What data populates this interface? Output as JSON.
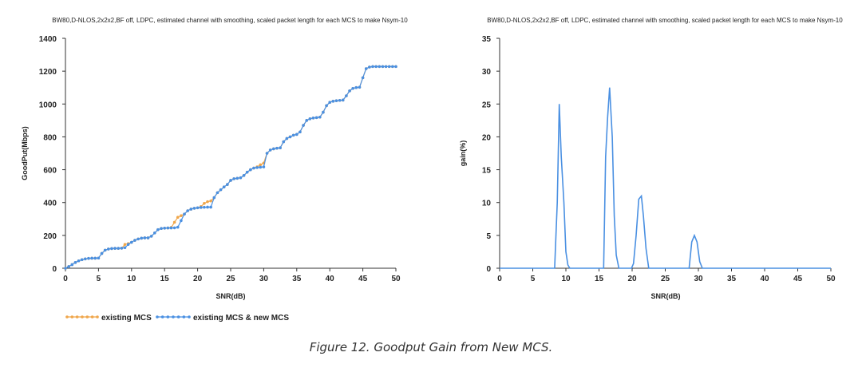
{
  "caption": "Figure 12. Goodput Gain from New MCS.",
  "chart_data": [
    {
      "type": "line",
      "title": "BW80,D-NLOS,2x2x2,BF off, LDPC, estimated channel with smoothing, scaled packet length for each MCS to make Nsym-10",
      "xlabel": "SNR(dB)",
      "ylabel": "GoodPut(Mbps)",
      "xlim": [
        0,
        50
      ],
      "ylim": [
        0,
        1400
      ],
      "xticks": [
        0,
        5,
        10,
        15,
        20,
        25,
        30,
        35,
        40,
        45,
        50
      ],
      "yticks": [
        0,
        200,
        400,
        600,
        800,
        1000,
        1200,
        1400
      ],
      "grid": false,
      "legend_position": "bottom-left",
      "x": [
        0,
        0.5,
        1,
        1.5,
        2,
        2.5,
        3,
        3.5,
        4,
        4.5,
        5,
        5.5,
        6,
        6.5,
        7,
        7.5,
        8,
        8.5,
        9,
        9.5,
        10,
        10.5,
        11,
        11.5,
        12,
        12.5,
        13,
        13.5,
        14,
        14.5,
        15,
        15.5,
        16,
        16.5,
        17,
        17.5,
        18,
        18.5,
        19,
        19.5,
        20,
        20.5,
        21,
        21.5,
        22,
        22.5,
        23,
        23.5,
        24,
        24.5,
        25,
        25.5,
        26,
        26.5,
        27,
        27.5,
        28,
        28.5,
        29,
        29.5,
        30,
        30.5,
        31,
        31.5,
        32,
        32.5,
        33,
        33.5,
        34,
        34.5,
        35,
        35.5,
        36,
        36.5,
        37,
        37.5,
        38,
        38.5,
        39,
        39.5,
        40,
        40.5,
        41,
        41.5,
        42,
        42.5,
        43,
        43.5,
        44,
        44.5,
        45,
        45.5,
        46,
        46.5,
        47,
        47.5,
        48,
        48.5,
        49,
        49.5,
        50
      ],
      "series": [
        {
          "name": "existing MCS",
          "color": "#f0a64a",
          "values": [
            0,
            10,
            22,
            35,
            45,
            52,
            57,
            60,
            61,
            61,
            62,
            90,
            110,
            117,
            120,
            121,
            121,
            122,
            145,
            150,
            158,
            170,
            178,
            183,
            185,
            185,
            195,
            215,
            235,
            242,
            244,
            245,
            248,
            280,
            310,
            320,
            330,
            350,
            360,
            365,
            368,
            375,
            395,
            405,
            410,
            430,
            460,
            478,
            495,
            510,
            535,
            545,
            548,
            551,
            565,
            585,
            600,
            610,
            617,
            630,
            640,
            700,
            720,
            727,
            731,
            733,
            770,
            790,
            800,
            810,
            815,
            830,
            870,
            900,
            910,
            915,
            917,
            920,
            950,
            990,
            1010,
            1017,
            1020,
            1022,
            1024,
            1050,
            1080,
            1095,
            1100,
            1102,
            1160,
            1215,
            1225,
            1228,
            1228,
            1228,
            1228,
            1228,
            1228,
            1228,
            1228
          ]
        },
        {
          "name": "existing MCS & new  MCS",
          "color": "#4a90e2",
          "values": [
            0,
            10,
            22,
            35,
            45,
            52,
            57,
            60,
            61,
            61,
            62,
            90,
            110,
            117,
            120,
            121,
            121,
            122,
            125,
            145,
            158,
            170,
            178,
            183,
            185,
            185,
            195,
            215,
            235,
            242,
            244,
            245,
            245,
            246,
            250,
            290,
            330,
            350,
            360,
            365,
            368,
            370,
            371,
            372,
            372,
            430,
            460,
            478,
            495,
            510,
            535,
            545,
            548,
            551,
            565,
            585,
            600,
            610,
            613,
            615,
            617,
            700,
            720,
            727,
            731,
            733,
            770,
            790,
            800,
            810,
            815,
            830,
            870,
            900,
            910,
            915,
            917,
            920,
            950,
            990,
            1010,
            1017,
            1020,
            1022,
            1024,
            1050,
            1080,
            1095,
            1100,
            1102,
            1160,
            1215,
            1225,
            1228,
            1228,
            1228,
            1228,
            1228,
            1228,
            1228,
            1228
          ]
        }
      ]
    },
    {
      "type": "line",
      "title": "BW80,D-NLOS,2x2x2,BF off, LDPC, estimated channel with smoothing, scaled packet length for each MCS to make Nsym-10",
      "xlabel": "SNR(dB)",
      "ylabel": "gain(%)",
      "xlim": [
        0,
        50
      ],
      "ylim": [
        0,
        35
      ],
      "xticks": [
        0,
        5,
        10,
        15,
        20,
        25,
        30,
        35,
        40,
        45,
        50
      ],
      "yticks": [
        0,
        5,
        10,
        15,
        20,
        25,
        30,
        35
      ],
      "grid": false,
      "series": [
        {
          "color": "#4a90e2",
          "x": [
            0,
            8.3,
            8.7,
            9.0,
            9.3,
            9.7,
            10.0,
            10.3,
            10.6,
            15.7,
            16.0,
            16.3,
            16.6,
            17.0,
            17.3,
            17.6,
            18.0,
            18.3,
            19.9,
            20.2,
            20.6,
            21.0,
            21.4,
            21.7,
            22.1,
            22.5,
            28.6,
            29.0,
            29.4,
            29.8,
            30.2,
            30.6,
            50
          ],
          "values": [
            0,
            0,
            10,
            25,
            17,
            10,
            2.5,
            0.5,
            0,
            0,
            17,
            23,
            27.5,
            20,
            8,
            2,
            0,
            0,
            0,
            0.7,
            5,
            10.5,
            11,
            8,
            3,
            0,
            0,
            4,
            5,
            4,
            1,
            0,
            0
          ]
        }
      ]
    }
  ]
}
